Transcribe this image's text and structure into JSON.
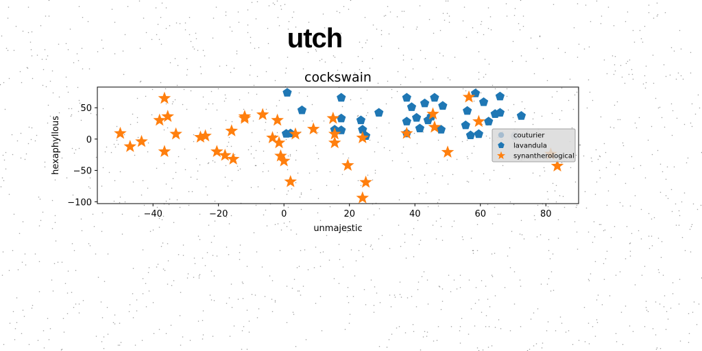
{
  "suptitle": "utch",
  "chart_data": {
    "type": "scatter",
    "title": "cockswain",
    "xlabel": "unmajestic",
    "ylabel": "hexaphyllous",
    "xlim": [
      -57,
      90
    ],
    "ylim": [
      -103,
      83
    ],
    "xticks": [
      -40,
      -20,
      0,
      20,
      40,
      60,
      80
    ],
    "yticks": [
      -100,
      -50,
      0,
      50
    ],
    "grid": false,
    "legend_placement": "center-right",
    "series": [
      {
        "name": "couturier",
        "marker": "circle",
        "color": "#a6bccf",
        "points": [
          [
            70.5,
            5
          ]
        ]
      },
      {
        "name": "lavandula",
        "marker": "pentagon",
        "color": "#1f77b4",
        "points": [
          [
            1,
            74
          ],
          [
            5.5,
            46
          ],
          [
            17.5,
            66
          ],
          [
            0.7,
            8.5
          ],
          [
            2,
            9
          ],
          [
            15.5,
            15
          ],
          [
            17.5,
            14
          ],
          [
            23.5,
            30
          ],
          [
            24,
            15
          ],
          [
            25,
            5
          ],
          [
            17.5,
            33
          ],
          [
            29,
            42
          ],
          [
            37.5,
            66
          ],
          [
            37.5,
            28
          ],
          [
            37.5,
            9
          ],
          [
            39,
            51
          ],
          [
            40.5,
            34
          ],
          [
            43,
            57
          ],
          [
            46,
            66
          ],
          [
            44,
            30
          ],
          [
            45,
            36
          ],
          [
            41.5,
            17
          ],
          [
            48,
            15
          ],
          [
            48.5,
            53
          ],
          [
            57,
            6
          ],
          [
            58.5,
            73
          ],
          [
            61,
            59
          ],
          [
            56,
            45
          ],
          [
            55.5,
            22
          ],
          [
            59.5,
            8
          ],
          [
            62.5,
            28
          ],
          [
            64.5,
            40
          ],
          [
            66,
            42
          ],
          [
            66,
            68
          ],
          [
            72.5,
            37
          ]
        ]
      },
      {
        "name": "synantherological",
        "marker": "star",
        "color": "#ff7f0e",
        "points": [
          [
            -36.5,
            65
          ],
          [
            -35.5,
            36
          ],
          [
            -38,
            30
          ],
          [
            -50,
            9
          ],
          [
            -47,
            -12
          ],
          [
            -43.5,
            -4
          ],
          [
            -36.5,
            -20
          ],
          [
            -33,
            8
          ],
          [
            -25.5,
            3
          ],
          [
            -24,
            5
          ],
          [
            -20.5,
            -20
          ],
          [
            -18,
            -26
          ],
          [
            -15.5,
            -32
          ],
          [
            -16,
            13
          ],
          [
            -12,
            36
          ],
          [
            -12,
            33
          ],
          [
            -6.5,
            39
          ],
          [
            -3.5,
            2
          ],
          [
            -2,
            30
          ],
          [
            -1.5,
            -6
          ],
          [
            -1,
            -27
          ],
          [
            0,
            -35
          ],
          [
            2,
            -68
          ],
          [
            3.5,
            8
          ],
          [
            9,
            16
          ],
          [
            15,
            33
          ],
          [
            15.5,
            -6
          ],
          [
            15.5,
            8
          ],
          [
            19.5,
            -42
          ],
          [
            24,
            2
          ],
          [
            24,
            -94
          ],
          [
            25,
            -69
          ],
          [
            37.5,
            9
          ],
          [
            45.5,
            40
          ],
          [
            46,
            19
          ],
          [
            50,
            -21
          ],
          [
            56.5,
            67
          ],
          [
            59.5,
            28
          ],
          [
            81.5,
            -24
          ],
          [
            83.5,
            -43
          ]
        ]
      }
    ]
  }
}
